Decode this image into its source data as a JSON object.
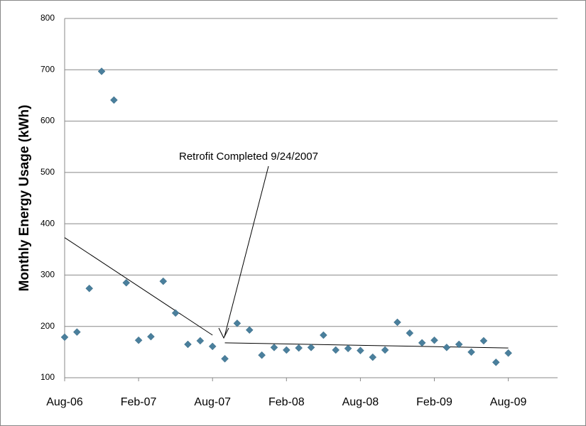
{
  "chart_data": {
    "type": "scatter",
    "y_label": "Monthly Energy Usage (kWh)",
    "annotation": "Retrofit Completed 9/24/2007",
    "x": [
      "2006-08",
      "2006-09",
      "2006-10",
      "2006-11",
      "2006-12",
      "2007-01",
      "2007-02",
      "2007-03",
      "2007-04",
      "2007-05",
      "2007-06",
      "2007-07",
      "2007-08",
      "2007-09",
      "2007-10",
      "2007-11",
      "2007-12",
      "2008-01",
      "2008-02",
      "2008-03",
      "2008-04",
      "2008-05",
      "2008-06",
      "2008-07",
      "2008-08",
      "2008-09",
      "2008-10",
      "2008-11",
      "2008-12",
      "2009-01",
      "2009-02",
      "2009-03",
      "2009-04",
      "2009-05",
      "2009-06",
      "2009-07",
      "2009-08"
    ],
    "values": [
      179,
      189,
      274,
      697,
      641,
      285,
      173,
      180,
      288,
      226,
      165,
      172,
      161,
      137,
      206,
      193,
      144,
      159,
      154,
      158,
      159,
      183,
      154,
      157,
      153,
      140,
      154,
      208,
      187,
      168,
      173,
      159,
      165,
      150,
      172,
      130,
      148
    ],
    "color": "#4a7f9c",
    "trendlines": [
      {
        "x": [
          "2006-08",
          "2007-08"
        ],
        "values": [
          373,
          183
        ]
      },
      {
        "x": [
          "2007-09",
          "2009-08"
        ],
        "values": [
          168,
          158
        ]
      }
    ],
    "xlim": [
      "2006-08",
      "2009-12"
    ],
    "xticks": [
      {
        "value": "2006-08",
        "label": "Aug-06"
      },
      {
        "value": "2007-02",
        "label": "Feb-07"
      },
      {
        "value": "2007-08",
        "label": "Aug-07"
      },
      {
        "value": "2008-02",
        "label": "Feb-08"
      },
      {
        "value": "2008-08",
        "label": "Aug-08"
      },
      {
        "value": "2009-02",
        "label": "Feb-09"
      },
      {
        "value": "2009-08",
        "label": "Aug-09"
      }
    ],
    "ylim": [
      100,
      800
    ],
    "yticks": [
      100,
      200,
      300,
      400,
      500,
      600,
      700,
      800
    ],
    "grid": true
  }
}
